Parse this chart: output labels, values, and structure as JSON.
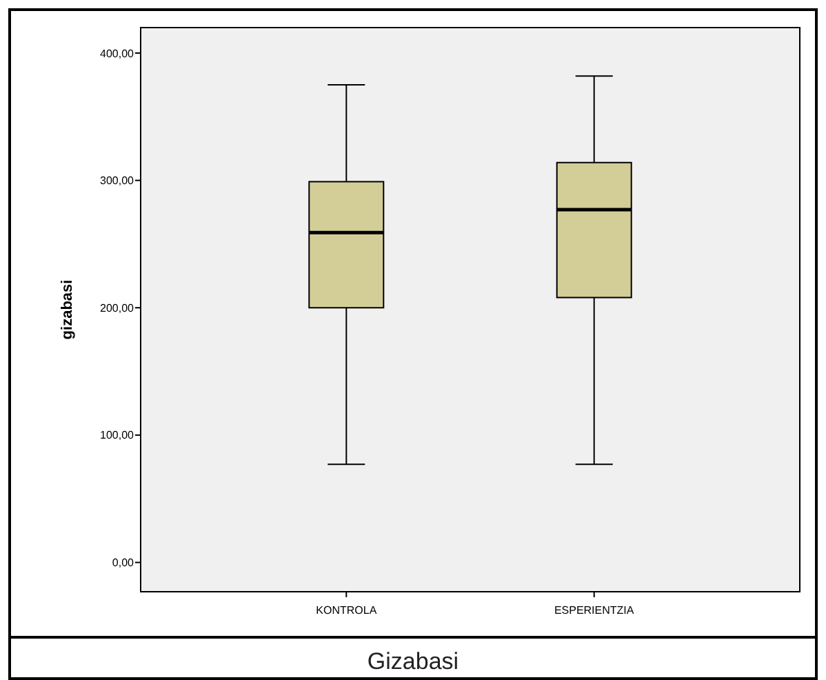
{
  "chart_data": {
    "type": "box",
    "ylabel": "gizabasi",
    "annotations": [
      "Gizabasi"
    ],
    "categories": [
      "KONTROLA",
      "ESPERIENTZIA"
    ],
    "boxes": [
      {
        "low": 77,
        "q1": 200,
        "median": 259,
        "q3": 299,
        "high": 375
      },
      {
        "low": 77,
        "q1": 208,
        "median": 277,
        "q3": 314,
        "high": 382
      }
    ],
    "color": "#d3ce97",
    "ylim": [
      -23,
      420
    ],
    "yticks": [
      {
        "value": 0,
        "label": "0,00"
      },
      {
        "value": 100,
        "label": "100,00"
      },
      {
        "value": 200,
        "label": "200,00"
      },
      {
        "value": 300,
        "label": "300,00"
      },
      {
        "value": 400,
        "label": "400,00"
      }
    ],
    "grid": false
  }
}
